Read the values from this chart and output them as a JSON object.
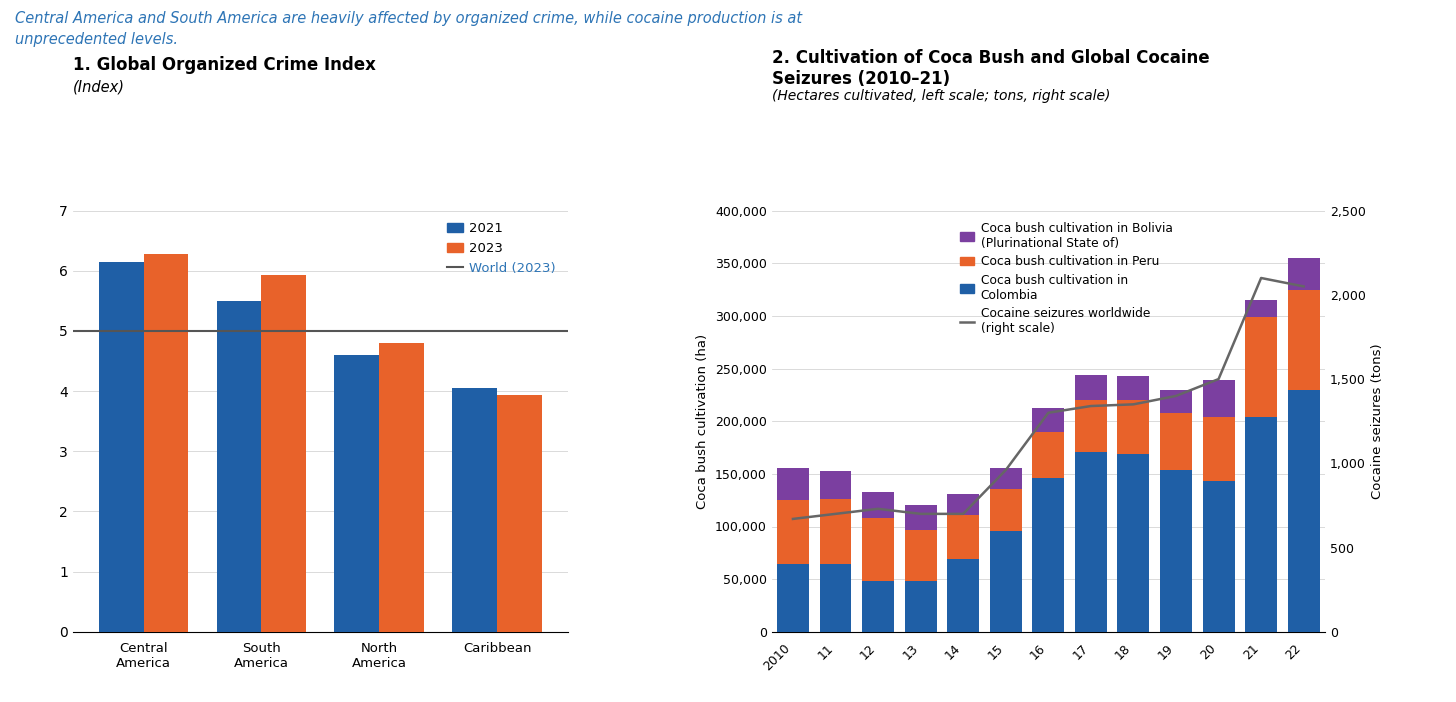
{
  "suptitle_line1": "Central America and South America are heavily affected by organized crime, while cocaine production is at",
  "suptitle_line2": "unprecedented levels.",
  "chart1": {
    "title": "1. Global Organized Crime Index",
    "subtitle": "(Index)",
    "categories": [
      "Central\nAmerica",
      "South\nAmerica",
      "North\nAmerica",
      "Caribbean"
    ],
    "values_2021": [
      6.15,
      5.5,
      4.6,
      4.05
    ],
    "values_2023": [
      6.28,
      5.93,
      4.8,
      3.93
    ],
    "world_2023": 5.0,
    "color_2021": "#1F5FA6",
    "color_2023": "#E8622A",
    "world_color": "#555555",
    "ylim": [
      0,
      7
    ],
    "yticks": [
      0,
      1,
      2,
      3,
      4,
      5,
      6,
      7
    ],
    "legend_2021": "2021",
    "legend_2023": "2023",
    "legend_world": "World (2023)"
  },
  "chart2": {
    "title_line1": "2. Cultivation of Coca Bush and Global Cocaine",
    "title_line2": "Seizures (2010–21)",
    "subtitle": "(Hectares cultivated, left scale; tons, right scale)",
    "years": [
      2010,
      2011,
      2012,
      2013,
      2014,
      2015,
      2016,
      2017,
      2018,
      2019,
      2020,
      2021,
      2022
    ],
    "colombia": [
      64000,
      64000,
      48000,
      48000,
      69000,
      96000,
      146000,
      171000,
      169000,
      154000,
      143000,
      204000,
      230000
    ],
    "peru": [
      61000,
      62000,
      60000,
      49000,
      42000,
      40000,
      44000,
      49000,
      51000,
      54000,
      61000,
      95000,
      95000
    ],
    "bolivia": [
      31000,
      27000,
      25000,
      23000,
      20000,
      20000,
      23000,
      24000,
      23000,
      22000,
      35000,
      16000,
      30000
    ],
    "seizures": [
      670,
      700,
      730,
      700,
      700,
      960,
      1300,
      1340,
      1350,
      1400,
      1500,
      2100,
      2050
    ],
    "color_colombia": "#1F5FA6",
    "color_peru": "#E8622A",
    "color_bolivia": "#7B3FA0",
    "color_seizures": "#666666",
    "left_ylim": [
      0,
      400000
    ],
    "left_yticks": [
      0,
      50000,
      100000,
      150000,
      200000,
      250000,
      300000,
      350000,
      400000
    ],
    "right_ylim": [
      0,
      2500
    ],
    "right_yticks": [
      0,
      500,
      1000,
      1500,
      2000,
      2500
    ],
    "ylabel_left": "Coca bush cultivation (ha)",
    "ylabel_right": "Cocaine seizures (tons)",
    "legend_bolivia": "Coca bush cultivation in Bolivia\n(Plurinational State of)",
    "legend_peru": "Coca bush cultivation in Peru",
    "legend_colombia": "Coca bush cultivation in\nColombia",
    "legend_seizures": "Cocaine seizures worldwide\n(right scale)"
  }
}
